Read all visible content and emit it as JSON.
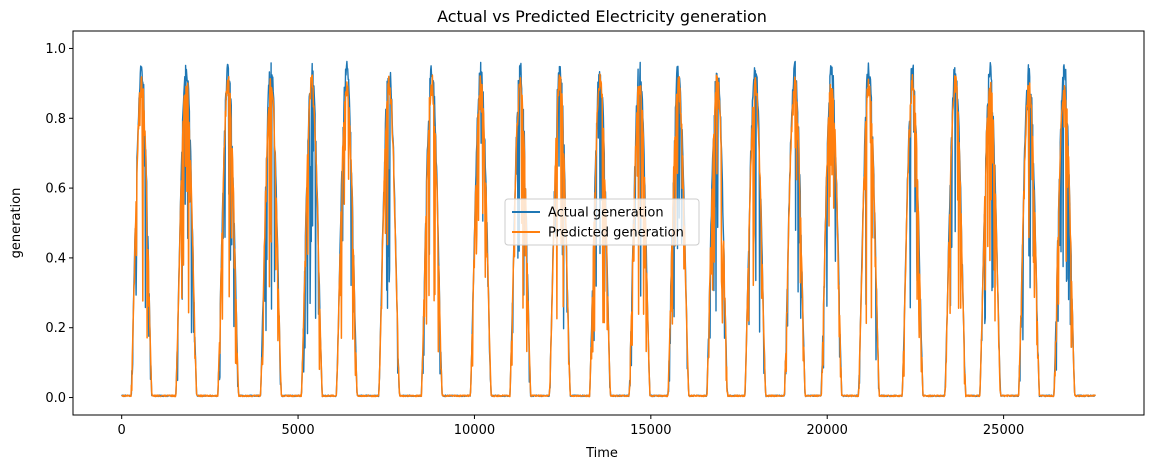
{
  "chart_data": {
    "type": "line",
    "title": "Actual vs Predicted Electricity generation",
    "xlabel": "Time",
    "ylabel": "generation",
    "xlim": [
      -1380,
      28980
    ],
    "ylim": [
      -0.05,
      1.05
    ],
    "xticks": [
      0,
      5000,
      10000,
      15000,
      20000,
      25000
    ],
    "xtick_labels": [
      "0",
      "5000",
      "10000",
      "15000",
      "20000",
      "25000"
    ],
    "yticks": [
      0.0,
      0.2,
      0.4,
      0.6,
      0.8,
      1.0
    ],
    "ytick_labels": [
      "0.0",
      "0.2",
      "0.4",
      "0.6",
      "0.8",
      "1.0"
    ],
    "grid": false,
    "legend_position": "center",
    "x_max": 27600,
    "cycle_centers": [
      560,
      1830,
      3020,
      4230,
      5390,
      6380,
      7580,
      8790,
      10180,
      11300,
      12420,
      13560,
      14680,
      15780,
      16880,
      17960,
      19080,
      20120,
      21180,
      22420,
      23630,
      24620,
      25720,
      26720
    ],
    "series": [
      {
        "name": "Actual generation",
        "color": "#1f77b4",
        "peak": 0.97,
        "seed": 7
      },
      {
        "name": "Predicted generation",
        "color": "#ff7f0e",
        "peak": 0.93,
        "seed": 13
      }
    ]
  }
}
